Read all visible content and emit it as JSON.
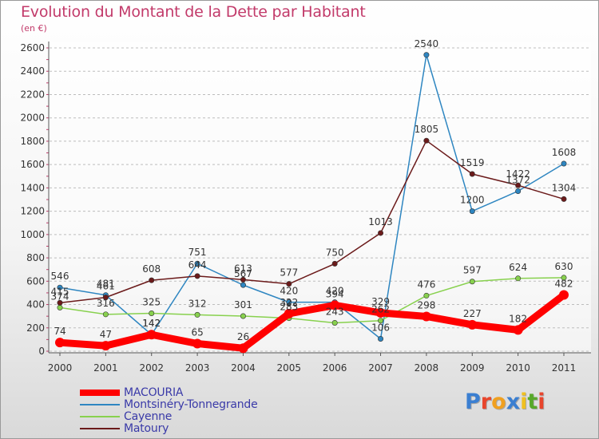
{
  "header": {
    "title": "Evolution du Montant de la Dette par Habitant",
    "unit": "(en €)"
  },
  "logo": {
    "text": "Proxiti",
    "letter_colors": [
      "#3b7fd1",
      "#e8452c",
      "#f0a020",
      "#3b7fd1",
      "#f0c020",
      "#58a82a",
      "#e8452c"
    ]
  },
  "chart_data": {
    "type": "line",
    "title": "Evolution du Montant de la Dette par Habitant",
    "subtitle": "(en €)",
    "xlabel": "",
    "ylabel": "",
    "x": [
      "2000",
      "2001",
      "2002",
      "2003",
      "2004",
      "2005",
      "2006",
      "2007",
      "2008",
      "2009",
      "2010",
      "2011"
    ],
    "ylim": [
      0,
      2600
    ],
    "yticks": [
      0,
      200,
      400,
      600,
      800,
      1000,
      1200,
      1400,
      1600,
      1800,
      2000,
      2200,
      2400,
      2600
    ],
    "grid": "horizontal-dashed",
    "legend_position": "bottom-left",
    "series": [
      {
        "name": "MACOURIA",
        "color": "#ff0000",
        "values": [
          74,
          47,
          142,
          65,
          26,
          322,
          394,
          329,
          298,
          227,
          182,
          482
        ]
      },
      {
        "name": "Montsinéry-Tonnegrande",
        "color": "#2e86c1",
        "values": [
          546,
          481,
          142,
          751,
          567,
          420,
          420,
          106,
          2540,
          1200,
          1372,
          1608
        ]
      },
      {
        "name": "Cayenne",
        "color": "#88d14e",
        "values": [
          374,
          316,
          325,
          312,
          301,
          283,
          243,
          262,
          476,
          597,
          624,
          630
        ]
      },
      {
        "name": "Matoury",
        "color": "#6b1a1a",
        "values": [
          415,
          461,
          608,
          644,
          613,
          577,
          750,
          1013,
          1805,
          1519,
          1422,
          1304
        ]
      }
    ]
  }
}
